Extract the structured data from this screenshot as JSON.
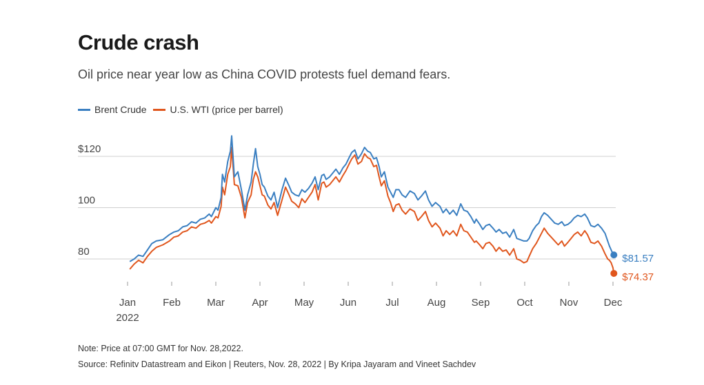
{
  "header": {
    "title": "Crude crash",
    "subtitle": "Oil price near year low as China COVID protests fuel demand fears."
  },
  "legend": {
    "items": [
      {
        "label": "Brent Crude",
        "color": "#3a7fc1"
      },
      {
        "label": "U.S. WTI (price per barrel)",
        "color": "#e0561d"
      }
    ]
  },
  "end_labels": {
    "brent": "$81.57",
    "wti": "$74.37"
  },
  "footer": {
    "note": "Note: Price at 07:00 GMT for Nov. 28,2022.",
    "source": "Source: Refinitv Datastream and Eikon | Reuters, Nov. 28, 2022 | By Kripa Jayaram and Vineet Sachdev"
  },
  "chart_data": {
    "type": "line",
    "title": "Crude crash",
    "subtitle": "Oil price near year low as China COVID protests fuel demand fears.",
    "xlabel": "",
    "ylabel": "",
    "x_axis": {
      "ticks": [
        "Jan",
        "Feb",
        "Mar",
        "Apr",
        "May",
        "Jun",
        "Jul",
        "Aug",
        "Sep",
        "Oct",
        "Nov",
        "Dec"
      ],
      "year_label": "2022",
      "xlim": [
        0,
        11
      ]
    },
    "y_axis": {
      "ticks": [
        {
          "value": 80,
          "label": "80"
        },
        {
          "value": 100,
          "label": "100"
        },
        {
          "value": 120,
          "label": "$120"
        }
      ],
      "ylim": [
        70,
        130
      ]
    },
    "grid": "horizontal",
    "legend_position": "top-left",
    "series": [
      {
        "name": "Brent Crude",
        "color": "#3a7fc1",
        "points": [
          [
            0.05,
            79.0
          ],
          [
            0.15,
            80.0
          ],
          [
            0.25,
            81.5
          ],
          [
            0.35,
            81.0
          ],
          [
            0.45,
            83.5
          ],
          [
            0.55,
            86.0
          ],
          [
            0.65,
            87.0
          ],
          [
            0.8,
            87.5
          ],
          [
            0.95,
            89.5
          ],
          [
            1.05,
            90.5
          ],
          [
            1.15,
            91.0
          ],
          [
            1.25,
            92.5
          ],
          [
            1.35,
            93.0
          ],
          [
            1.45,
            94.5
          ],
          [
            1.55,
            94.0
          ],
          [
            1.65,
            95.5
          ],
          [
            1.75,
            96.0
          ],
          [
            1.85,
            97.5
          ],
          [
            1.9,
            96.5
          ],
          [
            2.0,
            100.0
          ],
          [
            2.05,
            99.0
          ],
          [
            2.12,
            104.0
          ],
          [
            2.15,
            113.0
          ],
          [
            2.2,
            110.0
          ],
          [
            2.27,
            118.0
          ],
          [
            2.33,
            122.0
          ],
          [
            2.36,
            128.0
          ],
          [
            2.42,
            112.0
          ],
          [
            2.5,
            114.0
          ],
          [
            2.58,
            107.0
          ],
          [
            2.66,
            99.0
          ],
          [
            2.72,
            105.0
          ],
          [
            2.8,
            110.0
          ],
          [
            2.85,
            117.0
          ],
          [
            2.9,
            123.0
          ],
          [
            2.95,
            116.0
          ],
          [
            3.0,
            113.0
          ],
          [
            3.05,
            109.0
          ],
          [
            3.1,
            108.0
          ],
          [
            3.18,
            104.5
          ],
          [
            3.25,
            103.0
          ],
          [
            3.32,
            106.0
          ],
          [
            3.4,
            100.0
          ],
          [
            3.5,
            107.0
          ],
          [
            3.58,
            111.5
          ],
          [
            3.66,
            108.5
          ],
          [
            3.72,
            106.0
          ],
          [
            3.8,
            105.0
          ],
          [
            3.88,
            104.5
          ],
          [
            3.95,
            107.0
          ],
          [
            4.02,
            106.0
          ],
          [
            4.1,
            107.5
          ],
          [
            4.18,
            109.5
          ],
          [
            4.25,
            112.0
          ],
          [
            4.32,
            107.0
          ],
          [
            4.4,
            112.5
          ],
          [
            4.45,
            113.0
          ],
          [
            4.5,
            111.0
          ],
          [
            4.58,
            112.0
          ],
          [
            4.65,
            113.5
          ],
          [
            4.72,
            115.0
          ],
          [
            4.8,
            113.0
          ],
          [
            4.88,
            115.5
          ],
          [
            4.95,
            117.0
          ],
          [
            5.02,
            119.5
          ],
          [
            5.08,
            121.5
          ],
          [
            5.15,
            122.5
          ],
          [
            5.22,
            119.0
          ],
          [
            5.3,
            121.0
          ],
          [
            5.37,
            123.5
          ],
          [
            5.44,
            122.0
          ],
          [
            5.5,
            121.5
          ],
          [
            5.58,
            119.0
          ],
          [
            5.64,
            119.5
          ],
          [
            5.7,
            116.0
          ],
          [
            5.75,
            112.0
          ],
          [
            5.82,
            114.0
          ],
          [
            5.9,
            108.0
          ],
          [
            5.96,
            106.0
          ],
          [
            6.02,
            104.0
          ],
          [
            6.08,
            107.0
          ],
          [
            6.15,
            107.0
          ],
          [
            6.22,
            105.0
          ],
          [
            6.3,
            104.0
          ],
          [
            6.4,
            106.5
          ],
          [
            6.5,
            105.5
          ],
          [
            6.58,
            103.0
          ],
          [
            6.66,
            104.5
          ],
          [
            6.75,
            106.5
          ],
          [
            6.82,
            103.0
          ],
          [
            6.9,
            100.5
          ],
          [
            6.98,
            102.0
          ],
          [
            7.08,
            100.5
          ],
          [
            7.15,
            98.0
          ],
          [
            7.22,
            99.5
          ],
          [
            7.3,
            97.5
          ],
          [
            7.38,
            99.0
          ],
          [
            7.46,
            97.0
          ],
          [
            7.55,
            101.5
          ],
          [
            7.62,
            99.0
          ],
          [
            7.7,
            98.5
          ],
          [
            7.78,
            96.5
          ],
          [
            7.86,
            94.0
          ],
          [
            7.9,
            95.5
          ],
          [
            7.98,
            93.5
          ],
          [
            8.05,
            91.5
          ],
          [
            8.12,
            93.0
          ],
          [
            8.2,
            93.5
          ],
          [
            8.28,
            92.0
          ],
          [
            8.35,
            90.5
          ],
          [
            8.42,
            91.5
          ],
          [
            8.5,
            90.0
          ],
          [
            8.58,
            90.5
          ],
          [
            8.66,
            88.5
          ],
          [
            8.75,
            91.5
          ],
          [
            8.82,
            88.0
          ],
          [
            8.9,
            87.5
          ],
          [
            8.98,
            87.0
          ],
          [
            9.05,
            87.0
          ],
          [
            9.1,
            88.0
          ],
          [
            9.18,
            91.0
          ],
          [
            9.26,
            93.0
          ],
          [
            9.32,
            94.0
          ],
          [
            9.38,
            96.5
          ],
          [
            9.44,
            98.0
          ],
          [
            9.52,
            97.0
          ],
          [
            9.6,
            95.5
          ],
          [
            9.68,
            94.0
          ],
          [
            9.76,
            93.5
          ],
          [
            9.84,
            94.5
          ],
          [
            9.9,
            93.0
          ],
          [
            9.98,
            93.5
          ],
          [
            10.05,
            94.5
          ],
          [
            10.12,
            96.0
          ],
          [
            10.2,
            97.0
          ],
          [
            10.28,
            96.5
          ],
          [
            10.36,
            97.5
          ],
          [
            10.42,
            96.0
          ],
          [
            10.5,
            93.0
          ],
          [
            10.58,
            92.5
          ],
          [
            10.66,
            93.5
          ],
          [
            10.74,
            92.0
          ],
          [
            10.82,
            90.0
          ],
          [
            10.88,
            87.0
          ],
          [
            10.92,
            85.0
          ],
          [
            10.96,
            83.5
          ],
          [
            11.0,
            82.0
          ],
          [
            11.02,
            81.57
          ]
        ]
      },
      {
        "name": "U.S. WTI (price per barrel)",
        "color": "#e0561d",
        "points": [
          [
            0.05,
            76.0
          ],
          [
            0.15,
            78.0
          ],
          [
            0.25,
            79.5
          ],
          [
            0.35,
            78.5
          ],
          [
            0.45,
            81.0
          ],
          [
            0.55,
            83.0
          ],
          [
            0.65,
            84.5
          ],
          [
            0.8,
            85.5
          ],
          [
            0.95,
            87.0
          ],
          [
            1.05,
            88.5
          ],
          [
            1.15,
            89.0
          ],
          [
            1.25,
            90.5
          ],
          [
            1.35,
            91.0
          ],
          [
            1.45,
            92.5
          ],
          [
            1.55,
            92.0
          ],
          [
            1.65,
            93.5
          ],
          [
            1.75,
            94.0
          ],
          [
            1.85,
            95.0
          ],
          [
            1.9,
            94.0
          ],
          [
            2.0,
            96.5
          ],
          [
            2.05,
            96.0
          ],
          [
            2.12,
            100.5
          ],
          [
            2.15,
            108.0
          ],
          [
            2.2,
            105.0
          ],
          [
            2.27,
            113.0
          ],
          [
            2.33,
            116.0
          ],
          [
            2.36,
            123.5
          ],
          [
            2.42,
            109.0
          ],
          [
            2.5,
            108.5
          ],
          [
            2.58,
            104.0
          ],
          [
            2.66,
            96.0
          ],
          [
            2.72,
            102.0
          ],
          [
            2.8,
            105.0
          ],
          [
            2.85,
            111.0
          ],
          [
            2.9,
            114.0
          ],
          [
            2.95,
            112.0
          ],
          [
            3.0,
            108.5
          ],
          [
            3.05,
            105.0
          ],
          [
            3.1,
            104.5
          ],
          [
            3.18,
            101.0
          ],
          [
            3.25,
            99.5
          ],
          [
            3.32,
            102.0
          ],
          [
            3.4,
            97.0
          ],
          [
            3.5,
            103.0
          ],
          [
            3.58,
            108.0
          ],
          [
            3.66,
            105.0
          ],
          [
            3.72,
            102.5
          ],
          [
            3.8,
            101.5
          ],
          [
            3.88,
            100.0
          ],
          [
            3.95,
            103.5
          ],
          [
            4.02,
            102.0
          ],
          [
            4.1,
            104.0
          ],
          [
            4.18,
            106.0
          ],
          [
            4.25,
            109.0
          ],
          [
            4.32,
            103.0
          ],
          [
            4.4,
            109.5
          ],
          [
            4.45,
            110.0
          ],
          [
            4.5,
            108.0
          ],
          [
            4.58,
            109.0
          ],
          [
            4.65,
            110.5
          ],
          [
            4.72,
            112.0
          ],
          [
            4.8,
            110.0
          ],
          [
            4.88,
            112.5
          ],
          [
            4.95,
            114.5
          ],
          [
            5.02,
            117.0
          ],
          [
            5.08,
            119.0
          ],
          [
            5.15,
            120.5
          ],
          [
            5.22,
            117.0
          ],
          [
            5.3,
            118.0
          ],
          [
            5.37,
            121.0
          ],
          [
            5.44,
            119.5
          ],
          [
            5.5,
            119.0
          ],
          [
            5.58,
            116.0
          ],
          [
            5.64,
            116.5
          ],
          [
            5.7,
            112.0
          ],
          [
            5.75,
            108.5
          ],
          [
            5.82,
            110.5
          ],
          [
            5.9,
            104.5
          ],
          [
            5.96,
            102.0
          ],
          [
            6.02,
            98.5
          ],
          [
            6.08,
            101.0
          ],
          [
            6.15,
            101.5
          ],
          [
            6.22,
            99.0
          ],
          [
            6.3,
            97.5
          ],
          [
            6.4,
            99.5
          ],
          [
            6.5,
            98.5
          ],
          [
            6.58,
            95.0
          ],
          [
            6.66,
            96.5
          ],
          [
            6.75,
            98.5
          ],
          [
            6.82,
            95.0
          ],
          [
            6.9,
            92.5
          ],
          [
            6.98,
            94.0
          ],
          [
            7.08,
            92.0
          ],
          [
            7.15,
            89.0
          ],
          [
            7.22,
            91.0
          ],
          [
            7.3,
            89.5
          ],
          [
            7.38,
            91.0
          ],
          [
            7.46,
            89.0
          ],
          [
            7.55,
            93.5
          ],
          [
            7.62,
            91.0
          ],
          [
            7.7,
            90.5
          ],
          [
            7.78,
            88.5
          ],
          [
            7.86,
            86.5
          ],
          [
            7.9,
            87.0
          ],
          [
            7.98,
            85.5
          ],
          [
            8.05,
            84.0
          ],
          [
            8.12,
            86.0
          ],
          [
            8.2,
            86.5
          ],
          [
            8.28,
            85.0
          ],
          [
            8.35,
            83.0
          ],
          [
            8.42,
            84.5
          ],
          [
            8.5,
            83.0
          ],
          [
            8.58,
            83.5
          ],
          [
            8.66,
            81.5
          ],
          [
            8.75,
            84.0
          ],
          [
            8.82,
            80.0
          ],
          [
            8.9,
            79.5
          ],
          [
            8.98,
            78.5
          ],
          [
            9.05,
            79.0
          ],
          [
            9.1,
            81.0
          ],
          [
            9.18,
            84.0
          ],
          [
            9.26,
            86.0
          ],
          [
            9.32,
            88.0
          ],
          [
            9.38,
            90.0
          ],
          [
            9.44,
            92.0
          ],
          [
            9.52,
            90.0
          ],
          [
            9.6,
            88.5
          ],
          [
            9.68,
            87.0
          ],
          [
            9.76,
            85.5
          ],
          [
            9.84,
            87.0
          ],
          [
            9.9,
            85.0
          ],
          [
            9.98,
            86.5
          ],
          [
            10.05,
            88.0
          ],
          [
            10.12,
            89.5
          ],
          [
            10.2,
            90.5
          ],
          [
            10.28,
            89.0
          ],
          [
            10.36,
            91.0
          ],
          [
            10.42,
            89.5
          ],
          [
            10.5,
            86.5
          ],
          [
            10.58,
            86.0
          ],
          [
            10.66,
            87.0
          ],
          [
            10.74,
            85.0
          ],
          [
            10.82,
            82.0
          ],
          [
            10.88,
            80.0
          ],
          [
            10.92,
            79.5
          ],
          [
            10.96,
            78.5
          ],
          [
            11.0,
            76.5
          ],
          [
            11.02,
            74.37
          ]
        ]
      }
    ],
    "end_values": [
      {
        "series": "Brent Crude",
        "value": 81.57,
        "label": "$81.57"
      },
      {
        "series": "U.S. WTI (price per barrel)",
        "value": 74.37,
        "label": "$74.37"
      }
    ]
  }
}
